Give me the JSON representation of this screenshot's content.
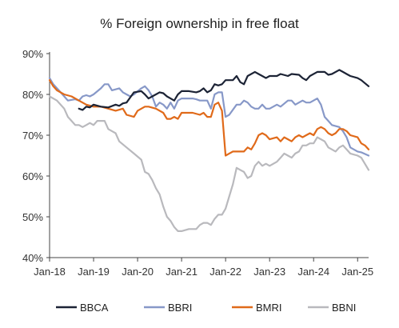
{
  "chart_data": {
    "type": "line",
    "title": "% Foreign ownership in free float",
    "xlabel": "",
    "ylabel": "",
    "ylim": [
      40,
      90
    ],
    "xlim": [
      "2018-01",
      "2025-04"
    ],
    "y_ticks": [
      40,
      50,
      60,
      70,
      80,
      90
    ],
    "y_tick_labels": [
      "40%",
      "50%",
      "60%",
      "70%",
      "80%",
      "90%"
    ],
    "x_ticks": [
      "2018-01",
      "2019-01",
      "2020-01",
      "2021-01",
      "2022-01",
      "2023-01",
      "2024-01",
      "2025-01"
    ],
    "x_tick_labels": [
      "Jan-18",
      "Jan-19",
      "Jan-20",
      "Jan-21",
      "Jan-22",
      "Jan-23",
      "Jan-24",
      "Jan-25"
    ],
    "grid": false,
    "legend_position": "bottom",
    "series": [
      {
        "name": "BBCA",
        "color": "#1c2335",
        "points": [
          [
            "2018-09",
            76.5
          ],
          [
            "2018-10",
            76.2
          ],
          [
            "2018-11",
            77.0
          ],
          [
            "2018-12",
            76.8
          ],
          [
            "2019-01",
            77.5
          ],
          [
            "2019-03",
            77.0
          ],
          [
            "2019-05",
            76.8
          ],
          [
            "2019-07",
            77.5
          ],
          [
            "2019-08",
            77.2
          ],
          [
            "2019-09",
            77.8
          ],
          [
            "2019-10",
            78.0
          ],
          [
            "2019-12",
            80.5
          ],
          [
            "2020-02",
            80.8
          ],
          [
            "2020-03",
            80.0
          ],
          [
            "2020-04",
            79.0
          ],
          [
            "2020-05",
            79.5
          ],
          [
            "2020-06",
            80.0
          ],
          [
            "2020-07",
            80.5
          ],
          [
            "2020-08",
            80.3
          ],
          [
            "2020-09",
            79.5
          ],
          [
            "2020-10",
            79.0
          ],
          [
            "2020-11",
            78.5
          ],
          [
            "2020-12",
            80.0
          ],
          [
            "2021-01",
            80.8
          ],
          [
            "2021-03",
            80.8
          ],
          [
            "2021-05",
            80.5
          ],
          [
            "2021-06",
            80.8
          ],
          [
            "2021-07",
            81.5
          ],
          [
            "2021-08",
            80.5
          ],
          [
            "2021-09",
            81.0
          ],
          [
            "2021-10",
            82.5
          ],
          [
            "2021-11",
            82.2
          ],
          [
            "2021-12",
            82.5
          ],
          [
            "2022-01",
            83.5
          ],
          [
            "2022-03",
            83.5
          ],
          [
            "2022-04",
            84.5
          ],
          [
            "2022-05",
            83.0
          ],
          [
            "2022-06",
            82.5
          ],
          [
            "2022-07",
            84.5
          ],
          [
            "2022-09",
            85.5
          ],
          [
            "2022-10",
            85.0
          ],
          [
            "2022-11",
            84.5
          ],
          [
            "2022-12",
            84.0
          ],
          [
            "2023-01",
            84.5
          ],
          [
            "2023-03",
            84.5
          ],
          [
            "2023-04",
            85.0
          ],
          [
            "2023-06",
            84.5
          ],
          [
            "2023-07",
            85.0
          ],
          [
            "2023-09",
            84.8
          ],
          [
            "2023-10",
            84.0
          ],
          [
            "2023-11",
            83.5
          ],
          [
            "2023-12",
            84.5
          ],
          [
            "2024-02",
            85.5
          ],
          [
            "2024-04",
            85.5
          ],
          [
            "2024-05",
            84.8
          ],
          [
            "2024-06",
            85.0
          ],
          [
            "2024-08",
            86.0
          ],
          [
            "2024-09",
            85.5
          ],
          [
            "2024-10",
            85.0
          ],
          [
            "2024-11",
            84.5
          ],
          [
            "2025-01",
            84.0
          ],
          [
            "2025-02",
            83.5
          ],
          [
            "2025-04",
            82.0
          ]
        ]
      },
      {
        "name": "BBRI",
        "color": "#8798c8",
        "points": [
          [
            "2018-01",
            84.0
          ],
          [
            "2018-02",
            82.5
          ],
          [
            "2018-04",
            80.5
          ],
          [
            "2018-05",
            79.5
          ],
          [
            "2018-06",
            78.5
          ],
          [
            "2018-08",
            78.8
          ],
          [
            "2018-09",
            78.5
          ],
          [
            "2018-10",
            79.5
          ],
          [
            "2018-11",
            79.8
          ],
          [
            "2018-12",
            79.5
          ],
          [
            "2019-01",
            80.0
          ],
          [
            "2019-03",
            81.5
          ],
          [
            "2019-04",
            82.5
          ],
          [
            "2019-05",
            82.5
          ],
          [
            "2019-06",
            81.0
          ],
          [
            "2019-08",
            81.5
          ],
          [
            "2019-09",
            80.5
          ],
          [
            "2019-10",
            80.0
          ],
          [
            "2019-11",
            79.5
          ],
          [
            "2019-12",
            80.0
          ],
          [
            "2020-02",
            81.5
          ],
          [
            "2020-03",
            82.0
          ],
          [
            "2020-04",
            81.0
          ],
          [
            "2020-05",
            79.5
          ],
          [
            "2020-06",
            77.0
          ],
          [
            "2020-07",
            78.0
          ],
          [
            "2020-08",
            77.5
          ],
          [
            "2020-09",
            76.5
          ],
          [
            "2020-10",
            78.0
          ],
          [
            "2020-11",
            76.5
          ],
          [
            "2020-12",
            78.5
          ],
          [
            "2021-01",
            79.0
          ],
          [
            "2021-04",
            79.0
          ],
          [
            "2021-05",
            78.8
          ],
          [
            "2021-06",
            78.5
          ],
          [
            "2021-08",
            78.5
          ],
          [
            "2021-09",
            76.5
          ],
          [
            "2021-10",
            80.0
          ],
          [
            "2021-11",
            80.5
          ],
          [
            "2021-12",
            80.5
          ],
          [
            "2022-01",
            74.5
          ],
          [
            "2022-02",
            75.0
          ],
          [
            "2022-04",
            77.5
          ],
          [
            "2022-05",
            77.5
          ],
          [
            "2022-06",
            78.5
          ],
          [
            "2022-07",
            78.0
          ],
          [
            "2022-08",
            77.0
          ],
          [
            "2022-09",
            76.5
          ],
          [
            "2022-10",
            76.5
          ],
          [
            "2022-11",
            77.5
          ],
          [
            "2022-12",
            76.5
          ],
          [
            "2023-01",
            76.5
          ],
          [
            "2023-03",
            77.5
          ],
          [
            "2023-04",
            77.0
          ],
          [
            "2023-06",
            78.5
          ],
          [
            "2023-07",
            78.5
          ],
          [
            "2023-08",
            77.5
          ],
          [
            "2023-09",
            78.0
          ],
          [
            "2023-10",
            78.5
          ],
          [
            "2023-11",
            78.0
          ],
          [
            "2023-12",
            78.0
          ],
          [
            "2024-02",
            79.0
          ],
          [
            "2024-03",
            77.5
          ],
          [
            "2024-04",
            74.5
          ],
          [
            "2024-05",
            73.5
          ],
          [
            "2024-06",
            72.5
          ],
          [
            "2024-08",
            72.0
          ],
          [
            "2024-09",
            71.0
          ],
          [
            "2024-10",
            69.5
          ],
          [
            "2024-11",
            67.0
          ],
          [
            "2025-01",
            66.0
          ],
          [
            "2025-02",
            65.8
          ],
          [
            "2025-04",
            65.0
          ]
        ]
      },
      {
        "name": "BMRI",
        "color": "#e06a1a",
        "points": [
          [
            "2018-01",
            83.5
          ],
          [
            "2018-02",
            82.0
          ],
          [
            "2018-03",
            81.0
          ],
          [
            "2018-05",
            80.0
          ],
          [
            "2018-07",
            79.5
          ],
          [
            "2018-08",
            79.0
          ],
          [
            "2018-09",
            78.5
          ],
          [
            "2018-11",
            77.5
          ],
          [
            "2019-01",
            77.0
          ],
          [
            "2019-03",
            77.0
          ],
          [
            "2019-05",
            76.5
          ],
          [
            "2019-07",
            76.0
          ],
          [
            "2019-09",
            76.5
          ],
          [
            "2019-10",
            75.0
          ],
          [
            "2019-12",
            74.5
          ],
          [
            "2020-01",
            76.0
          ],
          [
            "2020-03",
            77.0
          ],
          [
            "2020-04",
            77.0
          ],
          [
            "2020-06",
            76.5
          ],
          [
            "2020-08",
            75.5
          ],
          [
            "2020-09",
            74.0
          ],
          [
            "2020-10",
            74.0
          ],
          [
            "2020-11",
            74.5
          ],
          [
            "2020-12",
            74.0
          ],
          [
            "2021-01",
            75.5
          ],
          [
            "2021-04",
            75.5
          ],
          [
            "2021-06",
            75.0
          ],
          [
            "2021-07",
            75.5
          ],
          [
            "2021-08",
            74.5
          ],
          [
            "2021-09",
            74.5
          ],
          [
            "2021-10",
            77.5
          ],
          [
            "2021-11",
            78.0
          ],
          [
            "2021-12",
            76.0
          ],
          [
            "2022-01",
            65.0
          ],
          [
            "2022-02",
            65.5
          ],
          [
            "2022-03",
            66.0
          ],
          [
            "2022-05",
            66.0
          ],
          [
            "2022-06",
            66.0
          ],
          [
            "2022-07",
            67.0
          ],
          [
            "2022-08",
            66.5
          ],
          [
            "2022-09",
            68.0
          ],
          [
            "2022-10",
            70.0
          ],
          [
            "2022-11",
            70.5
          ],
          [
            "2022-12",
            70.0
          ],
          [
            "2023-01",
            69.0
          ],
          [
            "2023-03",
            69.5
          ],
          [
            "2023-04",
            68.5
          ],
          [
            "2023-05",
            69.5
          ],
          [
            "2023-06",
            69.0
          ],
          [
            "2023-07",
            68.5
          ],
          [
            "2023-08",
            69.5
          ],
          [
            "2023-09",
            70.0
          ],
          [
            "2023-10",
            69.5
          ],
          [
            "2023-11",
            70.0
          ],
          [
            "2023-12",
            70.5
          ],
          [
            "2024-01",
            70.0
          ],
          [
            "2024-02",
            71.5
          ],
          [
            "2024-03",
            72.0
          ],
          [
            "2024-04",
            71.5
          ],
          [
            "2024-05",
            70.5
          ],
          [
            "2024-06",
            70.0
          ],
          [
            "2024-07",
            70.5
          ],
          [
            "2024-08",
            71.5
          ],
          [
            "2024-09",
            71.5
          ],
          [
            "2024-10",
            71.0
          ],
          [
            "2024-11",
            70.0
          ],
          [
            "2025-01",
            69.5
          ],
          [
            "2025-02",
            68.0
          ],
          [
            "2025-03",
            67.5
          ],
          [
            "2025-04",
            66.5
          ]
        ]
      },
      {
        "name": "BBNI",
        "color": "#b9b9bd",
        "points": [
          [
            "2018-01",
            79.5
          ],
          [
            "2018-02",
            79.0
          ],
          [
            "2018-03",
            78.5
          ],
          [
            "2018-05",
            76.5
          ],
          [
            "2018-06",
            74.5
          ],
          [
            "2018-07",
            73.5
          ],
          [
            "2018-08",
            72.5
          ],
          [
            "2018-09",
            72.5
          ],
          [
            "2018-10",
            72.0
          ],
          [
            "2018-11",
            72.5
          ],
          [
            "2018-12",
            73.0
          ],
          [
            "2019-01",
            72.5
          ],
          [
            "2019-02",
            73.5
          ],
          [
            "2019-03",
            73.5
          ],
          [
            "2019-04",
            73.5
          ],
          [
            "2019-05",
            71.5
          ],
          [
            "2019-06",
            71.0
          ],
          [
            "2019-07",
            70.5
          ],
          [
            "2019-08",
            68.5
          ],
          [
            "2019-10",
            67.0
          ],
          [
            "2019-12",
            65.5
          ],
          [
            "2020-02",
            64.0
          ],
          [
            "2020-03",
            61.0
          ],
          [
            "2020-04",
            60.5
          ],
          [
            "2020-05",
            59.0
          ],
          [
            "2020-06",
            57.0
          ],
          [
            "2020-07",
            55.5
          ],
          [
            "2020-08",
            52.5
          ],
          [
            "2020-09",
            50.0
          ],
          [
            "2020-10",
            49.0
          ],
          [
            "2020-11",
            47.5
          ],
          [
            "2020-12",
            46.5
          ],
          [
            "2021-01",
            46.5
          ],
          [
            "2021-03",
            47.0
          ],
          [
            "2021-05",
            47.0
          ],
          [
            "2021-06",
            48.0
          ],
          [
            "2021-07",
            48.5
          ],
          [
            "2021-08",
            48.5
          ],
          [
            "2021-09",
            48.0
          ],
          [
            "2021-10",
            49.5
          ],
          [
            "2021-11",
            50.5
          ],
          [
            "2021-12",
            50.5
          ],
          [
            "2022-01",
            52.0
          ],
          [
            "2022-02",
            55.0
          ],
          [
            "2022-03",
            58.0
          ],
          [
            "2022-04",
            62.0
          ],
          [
            "2022-05",
            61.5
          ],
          [
            "2022-06",
            61.0
          ],
          [
            "2022-07",
            59.5
          ],
          [
            "2022-08",
            60.0
          ],
          [
            "2022-09",
            62.5
          ],
          [
            "2022-10",
            63.5
          ],
          [
            "2022-11",
            62.5
          ],
          [
            "2022-12",
            63.0
          ],
          [
            "2023-01",
            62.5
          ],
          [
            "2023-03",
            63.5
          ],
          [
            "2023-04",
            64.5
          ],
          [
            "2023-05",
            65.5
          ],
          [
            "2023-06",
            65.0
          ],
          [
            "2023-07",
            64.5
          ],
          [
            "2023-08",
            65.5
          ],
          [
            "2023-09",
            66.0
          ],
          [
            "2023-10",
            67.5
          ],
          [
            "2023-11",
            67.5
          ],
          [
            "2023-12",
            68.0
          ],
          [
            "2024-01",
            68.0
          ],
          [
            "2024-02",
            69.5
          ],
          [
            "2024-03",
            69.0
          ],
          [
            "2024-04",
            68.5
          ],
          [
            "2024-05",
            67.0
          ],
          [
            "2024-06",
            66.5
          ],
          [
            "2024-07",
            66.0
          ],
          [
            "2024-08",
            67.0
          ],
          [
            "2024-09",
            67.5
          ],
          [
            "2024-10",
            66.5
          ],
          [
            "2024-11",
            65.5
          ],
          [
            "2025-01",
            65.0
          ],
          [
            "2025-02",
            64.5
          ],
          [
            "2025-04",
            61.5
          ]
        ]
      }
    ]
  }
}
